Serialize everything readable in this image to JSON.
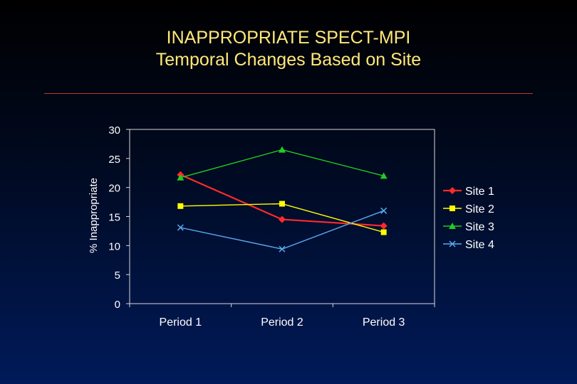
{
  "title_line1": "INAPPROPRIATE SPECT-MPI",
  "title_line2": "Temporal Changes Based on Site",
  "chart_data": {
    "type": "line",
    "categories": [
      "Period 1",
      "Period 2",
      "Period 3"
    ],
    "ylabel": "% Inappropriate",
    "xlabel": "",
    "ylim": [
      0,
      30
    ],
    "yticks": [
      0,
      5,
      10,
      15,
      20,
      25,
      30
    ],
    "grid": false,
    "legend_position": "right",
    "series": [
      {
        "name": "Site 1",
        "values": [
          22.2,
          14.5,
          13.4
        ],
        "color": "#ff2a2a",
        "marker": "diamond"
      },
      {
        "name": "Site 2",
        "values": [
          16.8,
          17.2,
          12.3
        ],
        "color": "#ffff00",
        "marker": "square"
      },
      {
        "name": "Site 3",
        "values": [
          21.7,
          26.5,
          22.0
        ],
        "color": "#22cc22",
        "marker": "triangle"
      },
      {
        "name": "Site 4",
        "values": [
          13.1,
          9.4,
          16.0
        ],
        "color": "#5aaaf0",
        "marker": "x"
      }
    ]
  }
}
